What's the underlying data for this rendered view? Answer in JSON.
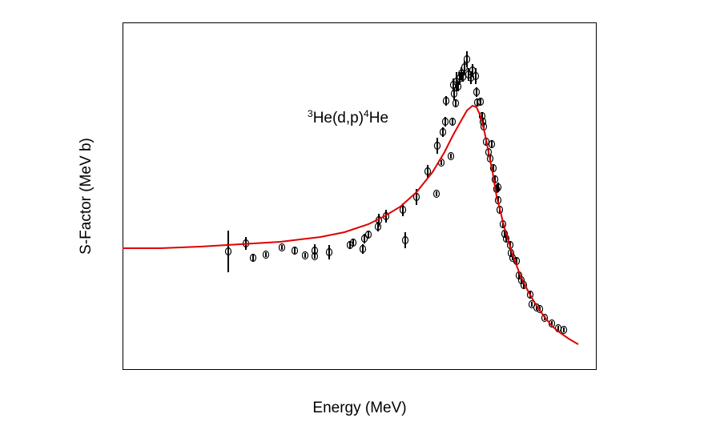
{
  "chart_data": {
    "type": "scatter",
    "xlabel": "Energy (MeV)",
    "ylabel": "S-Factor (MeV b)",
    "annotation": {
      "mass1": "3",
      "part1": "He(d,p)",
      "mass2": "4",
      "part2": "He"
    },
    "xlim": [
      0,
      591
    ],
    "ylim": [
      0,
      433
    ],
    "points": {
      "color": "#000000",
      "x": [
        132,
        154,
        163,
        179,
        199,
        215,
        228,
        240,
        240,
        258,
        284,
        288,
        300,
        302,
        307,
        319,
        320,
        329,
        350,
        353,
        367,
        381,
        392,
        393,
        398,
        400,
        403,
        404,
        410,
        412,
        414,
        413,
        416,
        417,
        419,
        421,
        423,
        425,
        427,
        430,
        432,
        435,
        437,
        441,
        442,
        443,
        447,
        449,
        450,
        451,
        454,
        457,
        459,
        461,
        463,
        465,
        467,
        469,
        469,
        471,
        475,
        477,
        479,
        484,
        485,
        487,
        492,
        495,
        498,
        501,
        509,
        511,
        517,
        521,
        527,
        536,
        544,
        551
      ],
      "y": [
        147,
        157,
        139,
        143,
        152,
        148,
        142,
        148,
        141,
        146,
        155,
        158,
        150,
        163,
        168,
        178,
        186,
        191,
        199,
        161,
        215,
        247,
        219,
        279,
        258,
        296,
        309,
        335,
        266,
        309,
        344,
        355,
        332,
        359,
        353,
        363,
        369,
        365,
        377,
        387,
        368,
        364,
        373,
        366,
        346,
        333,
        334,
        316,
        309,
        303,
        284,
        271,
        263,
        281,
        251,
        237,
        225,
        227,
        211,
        199,
        181,
        169,
        163,
        155,
        145,
        139,
        135,
        117,
        111,
        105,
        93,
        81,
        77,
        75,
        64,
        57,
        51,
        49
      ],
      "yerr": [
        26,
        8,
        4,
        3,
        3,
        4,
        3,
        8,
        3,
        9,
        5,
        4,
        6,
        6,
        5,
        6,
        8,
        8,
        8,
        10,
        10,
        8,
        3,
        10,
        3,
        6,
        6,
        6,
        3,
        4,
        8,
        8,
        5,
        12,
        6,
        8,
        8,
        6,
        8,
        10,
        8,
        8,
        8,
        10,
        6,
        4,
        4,
        5,
        5,
        5,
        5,
        5,
        4,
        5,
        5,
        5,
        5,
        6,
        4,
        4,
        4,
        4,
        4,
        4,
        4,
        3,
        4,
        4,
        4,
        4,
        4,
        3,
        3,
        3,
        3,
        3,
        3,
        3
      ]
    },
    "line": {
      "color": "#e00000",
      "x": [
        0,
        47,
        97,
        147,
        197,
        247,
        277,
        307,
        327,
        347,
        367,
        387,
        402,
        412,
        422,
        430,
        437,
        442,
        447,
        452,
        457,
        462,
        467,
        472,
        477,
        487,
        497,
        507,
        517,
        527,
        537,
        547,
        557,
        569
      ],
      "y": [
        151,
        151,
        153,
        156,
        159,
        165,
        171,
        181,
        191,
        203,
        221,
        246,
        271,
        291,
        309,
        323,
        329,
        327,
        316,
        296,
        271,
        246,
        216,
        196,
        176,
        143,
        116,
        96,
        79,
        65,
        53,
        45,
        38,
        31
      ]
    }
  }
}
